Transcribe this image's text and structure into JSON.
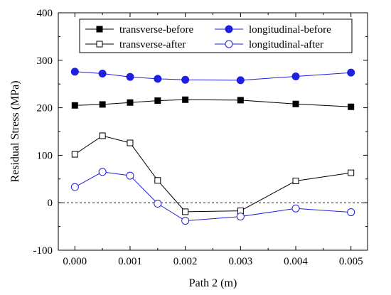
{
  "chart_data": {
    "type": "line",
    "xlabel": "Path 2 (m)",
    "ylabel": "Residual Stress (MPa)",
    "xlim": [
      -0.0003,
      0.0053
    ],
    "ylim": [
      -100,
      400
    ],
    "xticks": [
      "0.000",
      "0.001",
      "0.002",
      "0.003",
      "0.004",
      "0.005"
    ],
    "yticks": [
      "-100",
      "0",
      "100",
      "200",
      "300",
      "400"
    ],
    "zero_line": "dashed",
    "grid": false,
    "legend": "top",
    "series": [
      {
        "name": "transverse-before",
        "color": "#000000",
        "marker": "square-filled",
        "x": [
          0.0,
          0.0005,
          0.001,
          0.0015,
          0.002,
          0.003,
          0.004,
          0.005
        ],
        "y": [
          205,
          207,
          211,
          215,
          217,
          216,
          208,
          202
        ]
      },
      {
        "name": "longitudinal-before",
        "color": "#1f1fe0",
        "marker": "circle-filled",
        "x": [
          0.0,
          0.0005,
          0.001,
          0.0015,
          0.002,
          0.003,
          0.004,
          0.005
        ],
        "y": [
          276,
          272,
          265,
          261,
          259,
          258,
          266,
          274
        ]
      },
      {
        "name": "transverse-after",
        "color": "#000000",
        "marker": "square-open",
        "x": [
          0.0,
          0.0005,
          0.001,
          0.0015,
          0.002,
          0.003,
          0.004,
          0.005
        ],
        "y": [
          102,
          141,
          126,
          47,
          -19,
          -17,
          46,
          63
        ]
      },
      {
        "name": "longitudinal-after",
        "color": "#1f1fe0",
        "marker": "circle-open",
        "x": [
          0.0,
          0.0005,
          0.001,
          0.0015,
          0.002,
          0.003,
          0.004,
          0.005
        ],
        "y": [
          33,
          65,
          57,
          -2,
          -38,
          -29,
          -12,
          -20
        ]
      }
    ]
  }
}
